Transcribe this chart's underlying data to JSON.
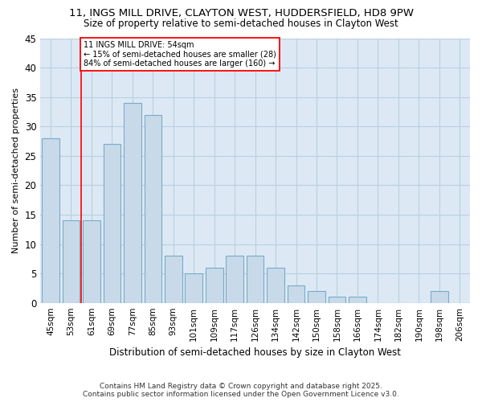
{
  "title1": "11, INGS MILL DRIVE, CLAYTON WEST, HUDDERSFIELD, HD8 9PW",
  "title2": "Size of property relative to semi-detached houses in Clayton West",
  "xlabel": "Distribution of semi-detached houses by size in Clayton West",
  "ylabel": "Number of semi-detached properties",
  "categories": [
    "45sqm",
    "53sqm",
    "61sqm",
    "69sqm",
    "77sqm",
    "85sqm",
    "93sqm",
    "101sqm",
    "109sqm",
    "117sqm",
    "126sqm",
    "134sqm",
    "142sqm",
    "150sqm",
    "158sqm",
    "166sqm",
    "174sqm",
    "182sqm",
    "190sqm",
    "198sqm",
    "206sqm"
  ],
  "values": [
    28,
    14,
    14,
    27,
    34,
    32,
    8,
    5,
    6,
    8,
    8,
    6,
    3,
    2,
    1,
    1,
    0,
    0,
    0,
    2,
    0
  ],
  "bar_color": "#c8daea",
  "bar_edge_color": "#7aaac8",
  "annotation_text_line1": "11 INGS MILL DRIVE: 54sqm",
  "annotation_text_line2": "← 15% of semi-detached houses are smaller (28)",
  "annotation_text_line3": "84% of semi-detached houses are larger (160) →",
  "red_line_x": 1.5,
  "ylim": [
    0,
    45
  ],
  "yticks": [
    0,
    5,
    10,
    15,
    20,
    25,
    30,
    35,
    40,
    45
  ],
  "plot_bg_color": "#dce9f5",
  "fig_bg_color": "#ffffff",
  "grid_color": "#b8cfe0",
  "footer1": "Contains HM Land Registry data © Crown copyright and database right 2025.",
  "footer2": "Contains public sector information licensed under the Open Government Licence v3.0.",
  "title1_fontsize": 9.5,
  "title2_fontsize": 8.5
}
